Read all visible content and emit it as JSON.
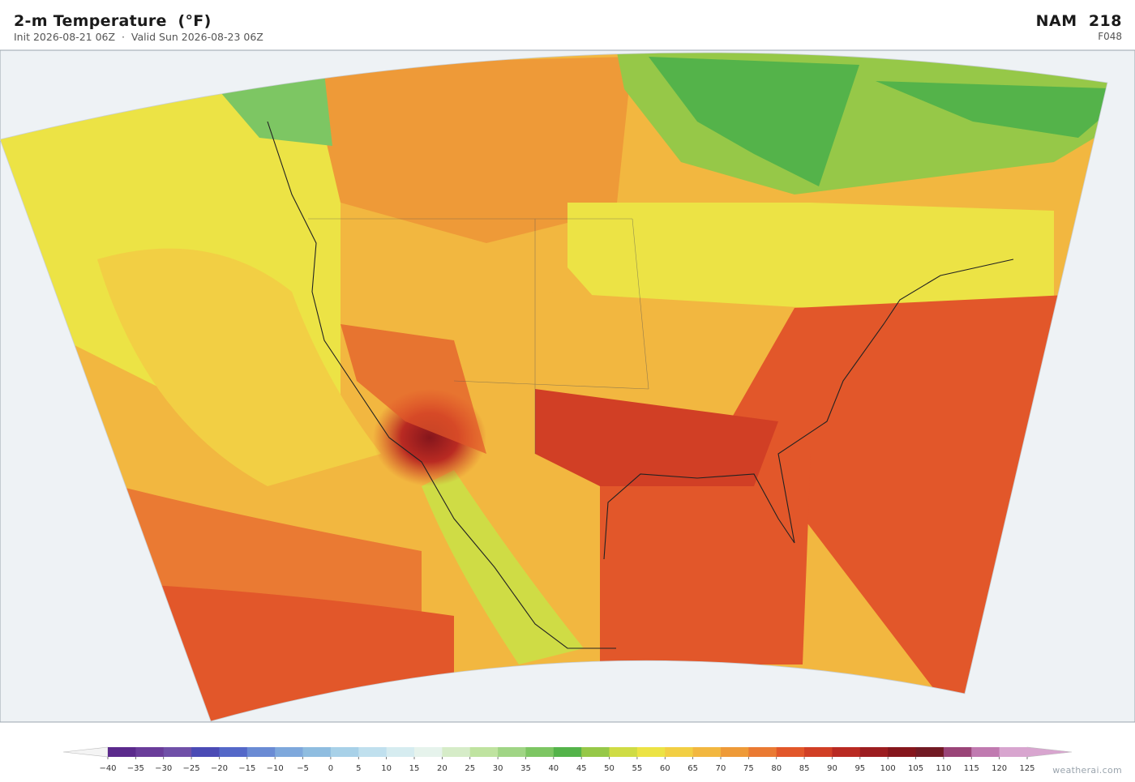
{
  "header": {
    "title": "2-m Temperature  (°F)",
    "subtitle": "Init 2026-08-21 06Z  ·  Valid Sun 2026-08-23 06Z",
    "model": "NAM  218",
    "forecast_hour": "F048"
  },
  "colorbar": {
    "ticks": [
      {
        "value": -40,
        "label": "−40"
      },
      {
        "value": -35,
        "label": "−35"
      },
      {
        "value": -30,
        "label": "−30"
      },
      {
        "value": -25,
        "label": "−25"
      },
      {
        "value": -20,
        "label": "−20"
      },
      {
        "value": -15,
        "label": "−15"
      },
      {
        "value": -10,
        "label": "−10"
      },
      {
        "value": -5,
        "label": "−5"
      },
      0,
      5,
      10,
      15,
      20,
      25,
      30,
      35,
      40,
      45,
      50,
      55,
      60,
      65,
      70,
      75,
      80,
      85,
      90,
      95,
      100,
      105,
      110,
      115,
      120,
      125
    ],
    "colors": [
      "#5b2a8c",
      "#6a3d9a",
      "#7050a8",
      "#4b4bb5",
      "#5468c8",
      "#6a8bd4",
      "#7ea8dc",
      "#8fbde0",
      "#a8d1e8",
      "#c0e0ee",
      "#d6ecf0",
      "#e6f3ec",
      "#d6ecc8",
      "#bfe3a0",
      "#a0d585",
      "#7dc663",
      "#54b34a",
      "#96c848",
      "#cfdc45",
      "#ece345",
      "#f2cf44",
      "#f2b740",
      "#ee9a38",
      "#ea7a33",
      "#e2572a",
      "#d13f25",
      "#b92a22",
      "#9c1d20",
      "#85161c",
      "#721a24",
      "#9a4578",
      "#c07ab0",
      "#d8a5cf"
    ]
  },
  "footer": {
    "credit": "weatherai.com"
  }
}
